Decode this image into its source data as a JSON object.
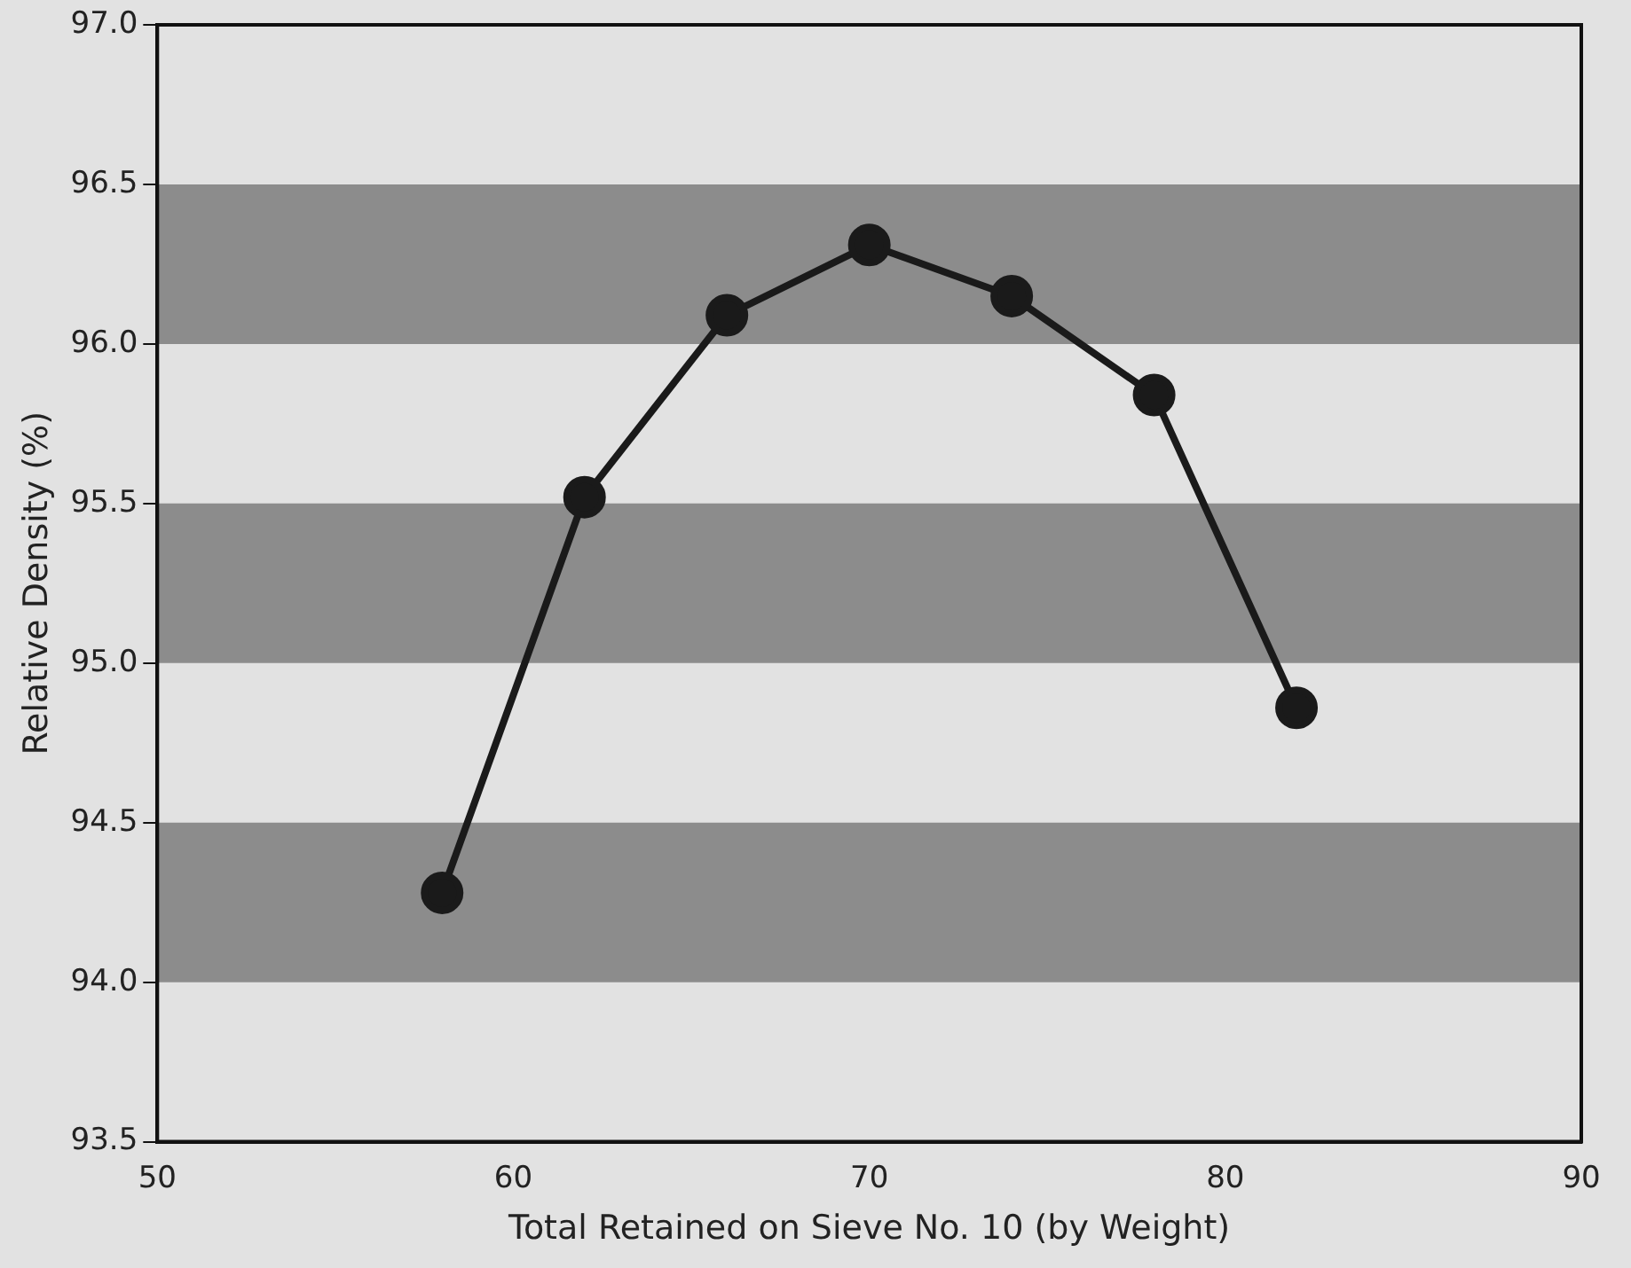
{
  "chart_data": {
    "type": "line",
    "xlabel": "Total Retained on Sieve No. 10 (by Weight)",
    "ylabel": "Relative Density (%)",
    "x": [
      58,
      62,
      66,
      70,
      74,
      78,
      82
    ],
    "series": [
      {
        "color": "#1a1a1a",
        "values": [
          94.28,
          95.52,
          96.09,
          96.31,
          96.15,
          95.84,
          94.86
        ]
      }
    ],
    "xlim": [
      50,
      90
    ],
    "xticks": [
      50,
      60,
      70,
      80,
      90
    ],
    "ylim": [
      93.5,
      97.0
    ],
    "yticks": [
      {
        "value": 93.5,
        "label": "93.5"
      },
      {
        "value": 94,
        "label": "94.0"
      },
      {
        "value": 94.5,
        "label": "94.5"
      },
      {
        "value": 95,
        "label": "95.0"
      },
      {
        "value": 95.5,
        "label": "95.5"
      },
      {
        "value": 96,
        "label": "96.0"
      },
      {
        "value": 96.5,
        "label": "96.5"
      },
      {
        "value": 97,
        "label": "97.0"
      }
    ],
    "bands": [
      {
        "axis": "y",
        "from": 94.0,
        "to": 94.5,
        "color": "#8c8c8c"
      },
      {
        "axis": "y",
        "from": 95.0,
        "to": 95.5,
        "color": "#8c8c8c"
      },
      {
        "axis": "y",
        "from": 96.0,
        "to": 96.5,
        "color": "#8c8c8c"
      }
    ],
    "grid": false,
    "legend": false,
    "marker": "circle",
    "line_style": "solid"
  }
}
